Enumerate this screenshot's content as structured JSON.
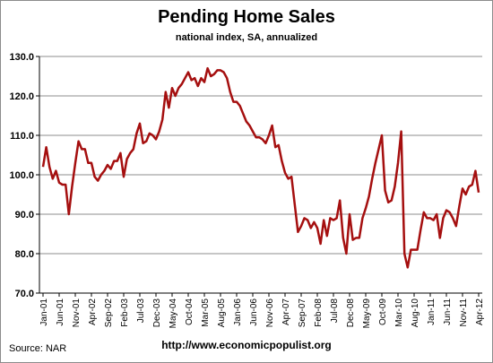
{
  "chart_data": {
    "type": "line",
    "title": "Pending Home Sales",
    "subtitle": "national index, SA, annualized",
    "xlabel": "",
    "ylabel": "",
    "ylim": [
      70,
      130
    ],
    "yticks": [
      "70.0",
      "80.0",
      "90.0",
      "100.0",
      "110.0",
      "120.0",
      "130.0"
    ],
    "xticks": [
      "Jan-01",
      "Jun-01",
      "Nov-01",
      "Apr-02",
      "Sep-02",
      "Feb-03",
      "Jul-03",
      "Dec-03",
      "May-04",
      "Oct-04",
      "Mar-05",
      "Aug-05",
      "Jan-06",
      "Jun-06",
      "Nov-06",
      "Apr-07",
      "Sep-07",
      "Feb-08",
      "Jul-08",
      "Dec-08",
      "May-09",
      "Oct-09",
      "Mar-10",
      "Aug-10",
      "Jan-11",
      "Jun-11",
      "Nov-11",
      "Apr-12"
    ],
    "grid": true,
    "legend": "none",
    "line_color": "#a50f0f",
    "series": [
      {
        "name": "",
        "values": [
          102.0,
          107.0,
          102.0,
          99.0,
          101.0,
          98.0,
          97.5,
          97.5,
          90.0,
          97.0,
          103.0,
          108.5,
          106.5,
          106.5,
          103.0,
          103.0,
          99.5,
          98.5,
          100.0,
          101.0,
          102.5,
          101.5,
          103.5,
          103.5,
          105.5,
          99.5,
          104.0,
          105.5,
          106.5,
          110.5,
          113.0,
          108.0,
          108.5,
          110.5,
          110.0,
          109.0,
          111.0,
          114.0,
          121.0,
          117.0,
          122.0,
          120.0,
          122.0,
          123.0,
          124.5,
          126.0,
          124.0,
          124.5,
          122.5,
          124.5,
          123.5,
          127.0,
          125.0,
          125.5,
          126.5,
          126.5,
          126.0,
          124.5,
          121.0,
          118.5,
          118.5,
          117.5,
          115.5,
          113.5,
          112.5,
          111.0,
          109.5,
          109.5,
          109.0,
          108.0,
          110.0,
          112.5,
          107.0,
          107.5,
          103.5,
          100.5,
          99.0,
          99.5,
          92.5,
          85.5,
          87.0,
          89.0,
          88.5,
          86.5,
          88.0,
          86.5,
          82.5,
          88.5,
          84.5,
          89.0,
          88.5,
          89.0,
          93.5,
          84.0,
          80.0,
          90.0,
          83.5,
          84.0,
          84.0,
          89.0,
          91.5,
          94.5,
          99.0,
          103.0,
          106.5,
          110.0,
          96.0,
          93.0,
          93.5,
          97.0,
          103.0,
          111.0,
          80.0,
          76.5,
          81.0,
          81.0,
          81.0,
          86.0,
          90.5,
          89.0,
          89.0,
          88.5,
          90.0,
          84.0,
          89.0,
          91.0,
          90.5,
          89.0,
          87.0,
          92.0,
          96.5,
          95.0,
          97.0,
          97.5,
          101.0,
          95.5
        ]
      }
    ]
  },
  "footer": {
    "source": "Source:  NAR",
    "url": "http://www.economicpopulist.org"
  }
}
